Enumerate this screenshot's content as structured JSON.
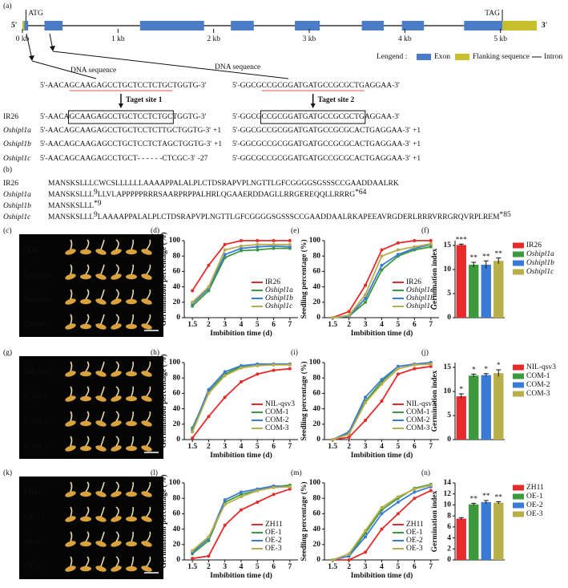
{
  "gene": {
    "panel": "(a)",
    "five_prime": "5'",
    "three_prime": "3'",
    "start_label": "ATG",
    "stop_label": "TAG",
    "xlim": [
      0,
      5.38
    ],
    "xticks": [
      {
        "value": 0,
        "label": "0 kb"
      },
      {
        "value": 1,
        "label": "1 kb"
      },
      {
        "value": 2,
        "label": "2 kb"
      },
      {
        "value": 3,
        "label": "3 kb"
      },
      {
        "value": 4,
        "label": "4 kb"
      },
      {
        "value": 5,
        "label": "5 kb"
      }
    ],
    "exons": [
      [
        0.02,
        0.06
      ],
      [
        0.23,
        0.42
      ],
      [
        1.23,
        1.9
      ],
      [
        2.18,
        2.42
      ],
      [
        2.85,
        3.11
      ],
      [
        3.55,
        3.78
      ],
      [
        3.97,
        4.2
      ],
      [
        4.62,
        5.02
      ]
    ],
    "flanking": [
      [
        0,
        0.02
      ],
      [
        5.02,
        5.38
      ]
    ],
    "legend_title": "Lengend :",
    "legend": [
      "Exon",
      "Flanking sequence",
      "Intron"
    ],
    "colors": {
      "exon": "#4a7cc7",
      "flanking": "#c8bf2c",
      "intron": "#111111"
    }
  },
  "sequences": {
    "target1": {
      "header": "DNA sequence",
      "label": "Taget site 1",
      "ref": {
        "pre": "5'-AACA",
        "site": "GCAAGAGCCTGCTCCTCTGC",
        "post": "TGGTG-3'"
      },
      "rows": [
        {
          "name": "IR26",
          "pre": "5'-AACA",
          "box": "GCAAGAGCCTGCTCCTCTGC",
          "post": "TGGTG-3'"
        },
        {
          "name": "Oshipl1a",
          "pre": "5'-AACAGCAAGAGCCTGCTCCTCT",
          "mut": "T",
          "post": "GCTGGTG-3'",
          "indel": "+1"
        },
        {
          "name": "Oshipl1b",
          "pre": "5'-AACAGCAAGAGCCTGCTCCTCT",
          "mut": "A",
          "post": "GCTGGTG-3'",
          "indel": "+1"
        },
        {
          "name": "Oshipl1c",
          "pre": "5'-AACAGCAAGAGCCTGCT",
          "gap": " - - - - - - ",
          "post": "CTCGC-3'",
          "indel": "-27"
        }
      ]
    },
    "target2": {
      "header": "DNA sequence",
      "label": "Taget site 2",
      "ref": {
        "pre": "5'-GGCG",
        "site": "CCGCGGATGATGCCGCGCTG",
        "post": "AGGAA-3'"
      },
      "rows": [
        {
          "pre": "5'-GGCG",
          "box": "CCGCGGATGATGCCGCGCTG",
          "post": "AGGAA-3'"
        },
        {
          "pre": "5'-GGCGCCGCGGATGATGCCGCGC",
          "mut": "A",
          "post": "CTGAGGAA-3'",
          "indel": "+1"
        },
        {
          "pre": "5'-GGCGCCGCGGATGATGCCGCGC",
          "mut": "A",
          "post": "CTGAGGAA-3'",
          "indel": "+1"
        },
        {
          "pre": "5'-GGCGCCGCGGATGATGCCGCGC",
          "mut": "A",
          "post": "CTGAGGAA-3'",
          "indel": "+1"
        }
      ]
    }
  },
  "proteins": {
    "panel": "(b)",
    "rows": [
      {
        "name": "IR26",
        "seq": "MANSKSLLLCWCSLLLLLLAAAAPPALALPLCTDSRAPVPLNGTTLGFCGGGGSGSSSCCGAADDAALRK"
      },
      {
        "name": "Oshipl1a",
        "seq": "MANSKSLLL",
        "mark": "9",
        "ext": "LLVLAPPPPPRRRSAARPRPPALHRLQGAAERDDAGLLRRGEREQQLLRRRG",
        "stop": "*64"
      },
      {
        "name": "Oshipl1b",
        "seq": "MANSKSLLL",
        "stop": "*9"
      },
      {
        "name": "Oshipl1c",
        "seq": "MANSKSLLL",
        "mark": "9",
        "ext": "LAAAAPPALALPLCTDSRAPVPLNGTTLGFCGGGGSGSSSCCGAADDAALRKAPEEAVRGDERLRRRVRRGRQVRPLREM",
        "stop": "*85"
      }
    ]
  },
  "photos": [
    {
      "panel": "(c)",
      "rows": [
        "IR26",
        "Oshipl1a",
        "Oshipl1b",
        "Oshipl1c"
      ]
    },
    {
      "panel": "(g)",
      "rows": [
        "NIL-qsv3",
        "COM-1",
        "COM-2",
        "COM-3"
      ]
    },
    {
      "panel": "(k)",
      "rows": [
        "ZH11",
        "OE-1",
        "OE-2",
        "OE-3"
      ]
    }
  ],
  "chart_data": [
    {
      "type": "line",
      "panel": "(d)",
      "ylabel": "Germination percentage (%)",
      "xlabel": "Imbibition time (d)",
      "categories": [
        "1.5",
        "2",
        "3",
        "4",
        "5",
        "6",
        "7"
      ],
      "ylim": [
        0,
        100
      ],
      "yticks": [
        0,
        20,
        40,
        60,
        80,
        100
      ],
      "legend": "lower right",
      "series": [
        {
          "name": "IR26",
          "color": "#e52b2b",
          "values": [
            35,
            68,
            95,
            100,
            100,
            100,
            100
          ]
        },
        {
          "name": "Oshipl1a",
          "color": "#3c9a3c",
          "values": [
            15,
            35,
            78,
            87,
            88,
            90,
            90
          ]
        },
        {
          "name": "Oshipl1b",
          "color": "#3b7bd8",
          "values": [
            18,
            38,
            82,
            90,
            92,
            93,
            92
          ]
        },
        {
          "name": "Oshipl1c",
          "color": "#b8ae4a",
          "values": [
            20,
            40,
            88,
            93,
            95,
            95,
            95
          ]
        }
      ]
    },
    {
      "type": "line",
      "panel": "(e)",
      "ylabel": "Seedling percentage (%)",
      "xlabel": "Imbibition time (d)",
      "categories": [
        "1.5",
        "2",
        "3",
        "4",
        "5",
        "6",
        "7"
      ],
      "ylim": [
        0,
        100
      ],
      "yticks": [
        0,
        20,
        40,
        60,
        80,
        100
      ],
      "legend": "lower right",
      "series": [
        {
          "name": "IR26",
          "color": "#e52b2b",
          "values": [
            0,
            8,
            42,
            88,
            97,
            100,
            100
          ]
        },
        {
          "name": "Oshipl1a",
          "color": "#3c9a3c",
          "values": [
            0,
            2,
            20,
            62,
            80,
            88,
            92
          ]
        },
        {
          "name": "Oshipl1b",
          "color": "#3b7bd8",
          "values": [
            0,
            2,
            25,
            68,
            82,
            90,
            95
          ]
        },
        {
          "name": "Oshipl1c",
          "color": "#b8ae4a",
          "values": [
            0,
            3,
            30,
            80,
            88,
            92,
            96
          ]
        }
      ]
    },
    {
      "type": "bar",
      "panel": "(f)",
      "ylabel": "Germination index",
      "ylim": [
        0,
        16
      ],
      "yticks": [
        0,
        5,
        10,
        15
      ],
      "categories": [
        "IR26",
        "Oshipl1a",
        "Oshipl1b",
        "Oshipl1c"
      ],
      "values": [
        15.1,
        11.0,
        11.0,
        11.8
      ],
      "errors": [
        0.2,
        0.5,
        0.8,
        0.6
      ],
      "annotations": [
        "***",
        "**",
        "**",
        "**"
      ],
      "colors": [
        "#e52b2b",
        "#3c9a3c",
        "#3b7bd8",
        "#b8ae4a"
      ]
    },
    {
      "type": "line",
      "panel": "(h)",
      "ylabel": "Germination percentage (%)",
      "xlabel": "Imbibition time (d)",
      "categories": [
        "1.5",
        "2",
        "3",
        "4",
        "5",
        "6",
        "7"
      ],
      "ylim": [
        0,
        100
      ],
      "yticks": [
        0,
        20,
        40,
        60,
        80,
        100
      ],
      "legend": "lower right",
      "series": [
        {
          "name": "NIL-qsv3",
          "color": "#e52b2b",
          "values": [
            2,
            30,
            55,
            75,
            85,
            90,
            92
          ]
        },
        {
          "name": "COM-1",
          "color": "#3c9a3c",
          "values": [
            15,
            62,
            85,
            95,
            98,
            98,
            98
          ]
        },
        {
          "name": "COM-2",
          "color": "#3b7bd8",
          "values": [
            12,
            65,
            88,
            96,
            98,
            98,
            98
          ]
        },
        {
          "name": "COM-3",
          "color": "#b8ae4a",
          "values": [
            10,
            60,
            83,
            93,
            96,
            97,
            97
          ]
        }
      ]
    },
    {
      "type": "line",
      "panel": "(i)",
      "ylabel": "Seedling percentage (%)",
      "xlabel": "Imbibition time (d)",
      "categories": [
        "1.5",
        "2",
        "3",
        "4",
        "5",
        "6",
        "7"
      ],
      "ylim": [
        0,
        100
      ],
      "yticks": [
        0,
        20,
        40,
        60,
        80,
        100
      ],
      "legend": "lower right",
      "series": [
        {
          "name": "NIL-qsv3",
          "color": "#e52b2b",
          "values": [
            0,
            3,
            25,
            50,
            85,
            92,
            95
          ]
        },
        {
          "name": "COM-1",
          "color": "#3c9a3c",
          "values": [
            0,
            8,
            50,
            75,
            95,
            98,
            100
          ]
        },
        {
          "name": "COM-2",
          "color": "#3b7bd8",
          "values": [
            0,
            10,
            55,
            78,
            95,
            98,
            100
          ]
        },
        {
          "name": "COM-3",
          "color": "#b8ae4a",
          "values": [
            0,
            7,
            48,
            72,
            92,
            97,
            98
          ]
        }
      ]
    },
    {
      "type": "bar",
      "panel": "(j)",
      "ylabel": "Germination index",
      "ylim": [
        0,
        16
      ],
      "yticks": [
        0,
        5,
        10,
        15
      ],
      "categories": [
        "NIL-qsv3",
        "COM-1",
        "COM-2",
        "COM-3"
      ],
      "values": [
        9.0,
        13.3,
        13.4,
        13.8
      ],
      "errors": [
        0.5,
        0.3,
        0.3,
        0.7
      ],
      "annotations": [
        "*",
        "*",
        "*",
        "*"
      ],
      "colors": [
        "#e52b2b",
        "#3c9a3c",
        "#3b7bd8",
        "#b8ae4a"
      ]
    },
    {
      "type": "line",
      "panel": "(l)",
      "ylabel": "Germination percentage (%)",
      "xlabel": "Imbibition time (d)",
      "categories": [
        "1.5",
        "2",
        "3",
        "4",
        "5",
        "6",
        "7"
      ],
      "ylim": [
        0,
        100
      ],
      "yticks": [
        0,
        20,
        40,
        60,
        80,
        100
      ],
      "legend": "lower right",
      "series": [
        {
          "name": "ZH11",
          "color": "#e52b2b",
          "values": [
            2,
            5,
            45,
            65,
            75,
            85,
            92
          ]
        },
        {
          "name": "OE-1",
          "color": "#3c9a3c",
          "values": [
            8,
            25,
            75,
            85,
            90,
            95,
            97
          ]
        },
        {
          "name": "OE-2",
          "color": "#3b7bd8",
          "values": [
            10,
            28,
            78,
            88,
            92,
            96,
            95
          ]
        },
        {
          "name": "OE-3",
          "color": "#b8ae4a",
          "values": [
            12,
            30,
            72,
            82,
            90,
            94,
            95
          ]
        }
      ]
    },
    {
      "type": "line",
      "panel": "(m)",
      "ylabel": "Seedling percentage (%)",
      "xlabel": "Imbibition time (d)",
      "categories": [
        "1.5",
        "2",
        "3",
        "4",
        "5",
        "6",
        "7"
      ],
      "ylim": [
        0,
        100
      ],
      "yticks": [
        0,
        20,
        40,
        60,
        80,
        100
      ],
      "legend": "lower right",
      "series": [
        {
          "name": "ZH11",
          "color": "#e52b2b",
          "values": [
            0,
            0,
            10,
            40,
            60,
            80,
            90
          ]
        },
        {
          "name": "OE-1",
          "color": "#3c9a3c",
          "values": [
            0,
            5,
            35,
            65,
            80,
            93,
            98
          ]
        },
        {
          "name": "OE-2",
          "color": "#3b7bd8",
          "values": [
            0,
            5,
            30,
            60,
            75,
            88,
            95
          ]
        },
        {
          "name": "OE-3",
          "color": "#b8ae4a",
          "values": [
            0,
            8,
            38,
            68,
            82,
            92,
            97
          ]
        }
      ]
    },
    {
      "type": "bar",
      "panel": "(n)",
      "ylabel": "Germination index",
      "ylim": [
        0,
        14
      ],
      "yticks": [
        0,
        2,
        4,
        6,
        8,
        10,
        12,
        14
      ],
      "categories": [
        "ZH11",
        "OE-1",
        "OE-2",
        "OE-3"
      ],
      "values": [
        7.5,
        10.1,
        10.5,
        10.4
      ],
      "errors": [
        0.2,
        0.2,
        0.3,
        0.2
      ],
      "annotations": [
        "",
        "**",
        "**",
        "**"
      ],
      "colors": [
        "#e52b2b",
        "#3c9a3c",
        "#3b7bd8",
        "#b8ae4a"
      ]
    }
  ]
}
